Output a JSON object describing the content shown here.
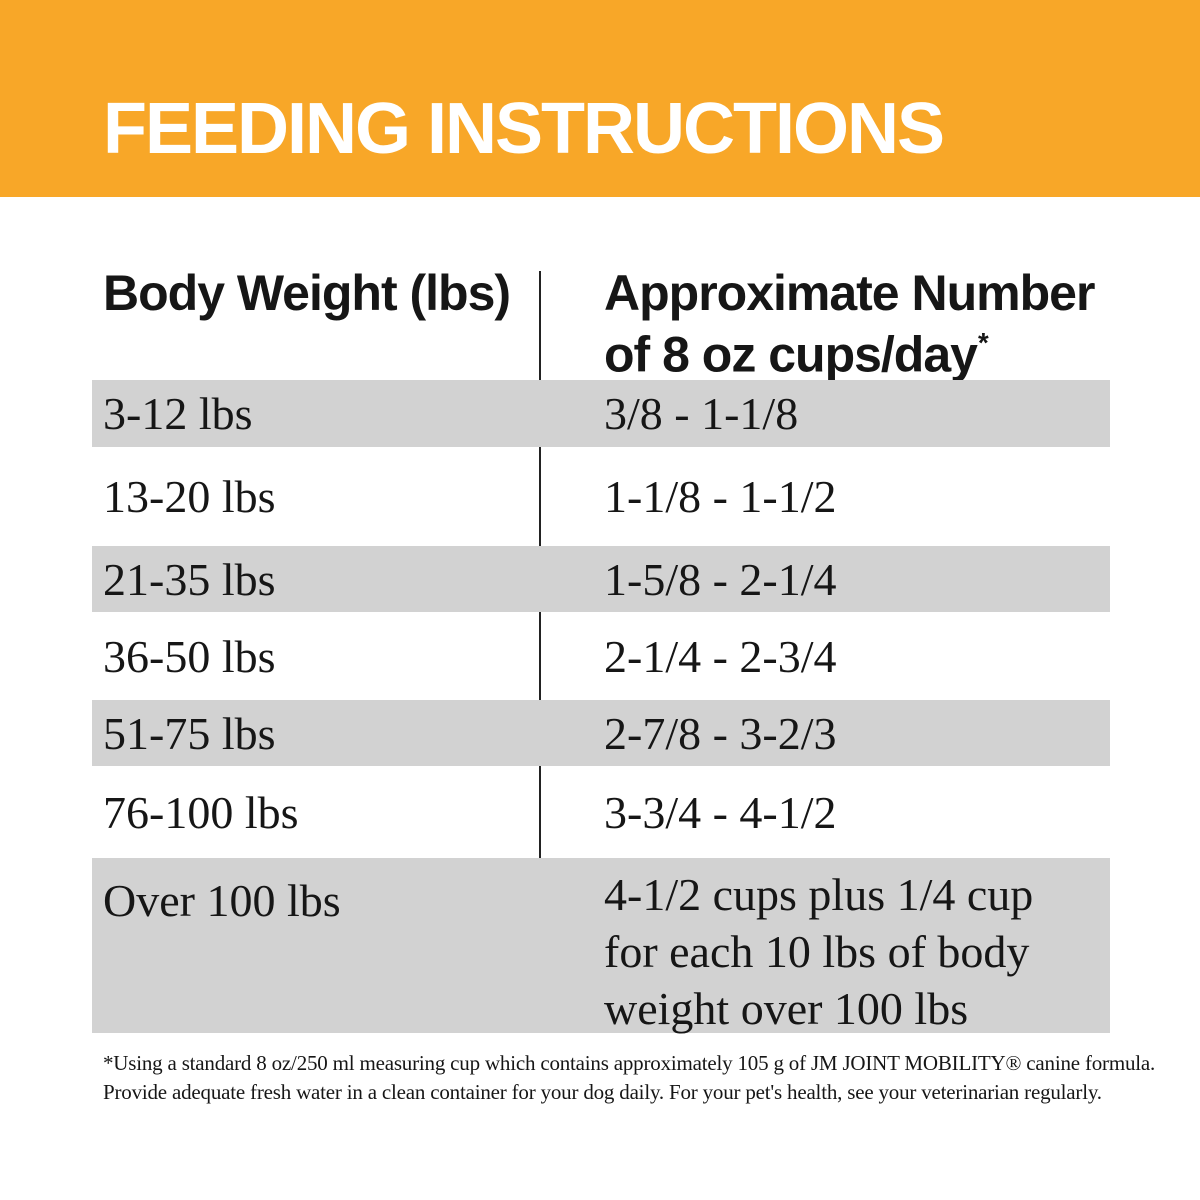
{
  "banner": {
    "title": "FEEDING INSTRUCTIONS"
  },
  "table": {
    "columns": [
      {
        "label": "Body Weight (lbs)"
      },
      {
        "label_line1": "Approximate Number",
        "label_line2": "of 8 oz cups/day",
        "footnote_marker": "*"
      }
    ],
    "rows": [
      {
        "weight": "3-12 lbs",
        "cups": "3/8 - 1-1/8"
      },
      {
        "weight": "13-20 lbs",
        "cups": "1-1/8 - 1-1/2"
      },
      {
        "weight": "21-35 lbs",
        "cups": "1-5/8 - 2-1/4"
      },
      {
        "weight": "36-50 lbs",
        "cups": "2-1/4 - 2-3/4"
      },
      {
        "weight": "51-75 lbs",
        "cups": "2-7/8 - 3-2/3"
      },
      {
        "weight": "76-100 lbs",
        "cups": "3-3/4 - 4-1/2"
      },
      {
        "weight": "Over 100 lbs",
        "cups": "4-1/2 cups plus 1/4 cup\nfor each 10 lbs of body\nweight over 100 lbs"
      }
    ]
  },
  "footnote": {
    "text": "*Using a standard 8 oz/250 ml measuring cup which contains approximately 105 g of JM JOINT MOBILITY® canine formula.\nProvide adequate fresh water in a clean container for your dog daily. For your pet's health, see your veterinarian regularly."
  },
  "colors": {
    "accent": "#F8A728",
    "zebra": "#D2D2D2",
    "ink": "#161616",
    "banner_text": "#FFFFFF"
  }
}
